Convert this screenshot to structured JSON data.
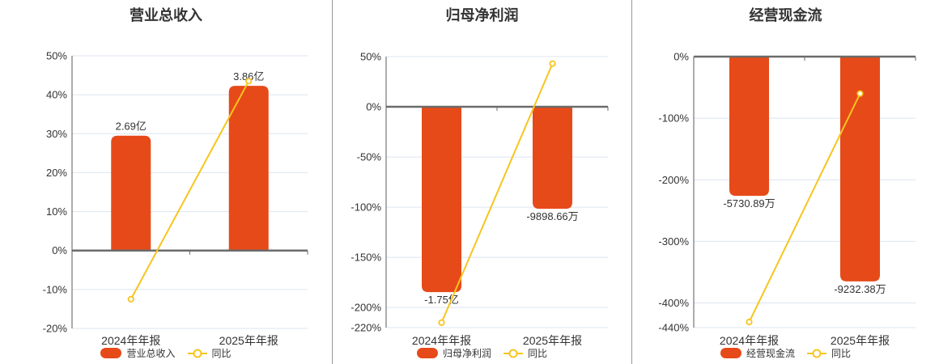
{
  "page": {
    "kind": "financial-periodic-report-charts"
  },
  "palette": {
    "bar": "#E64A19",
    "line": "#F6C51F",
    "grid": "#DCE4F0",
    "axis": "#595959",
    "zero": "#6B6B6B",
    "divider": "#999999",
    "text": "#333333"
  },
  "chart_data": [
    {
      "type": "bar+line",
      "title": "营业总收入",
      "categories": [
        "2024年年报",
        "2025年年报"
      ],
      "ytick_suffix": "%",
      "ylim": [
        -20,
        50
      ],
      "yticks": [
        50,
        40,
        30,
        20,
        10,
        0,
        -10,
        -20
      ],
      "bar_series": {
        "name": "营业总收入",
        "labels": [
          "2.69亿",
          "3.86亿"
        ],
        "plot_values_pct": [
          29.5,
          42.3
        ]
      },
      "line_series": {
        "name": "同比",
        "values_pct": [
          -12.5,
          43.5
        ]
      },
      "legend_position": "bottom",
      "grid": true
    },
    {
      "type": "bar+line",
      "title": "归母净利润",
      "categories": [
        "2024年年报",
        "2025年年报"
      ],
      "ytick_suffix": "%",
      "ylim": [
        -220,
        50
      ],
      "yticks": [
        50,
        0,
        -50,
        -100,
        -150,
        -200,
        -220
      ],
      "bar_series": {
        "name": "归母净利润",
        "labels": [
          "-1.75亿",
          "-9898.66万"
        ],
        "plot_values_pct": [
          -184.6,
          -101.6
        ]
      },
      "line_series": {
        "name": "同比",
        "values_pct": [
          -215,
          43
        ]
      },
      "legend_position": "bottom",
      "grid": true
    },
    {
      "type": "bar+line",
      "title": "经营现金流",
      "categories": [
        "2024年年报",
        "2025年年报"
      ],
      "ytick_suffix": "%",
      "ylim": [
        -440,
        0
      ],
      "yticks": [
        0,
        -100,
        -200,
        -300,
        -400,
        -440
      ],
      "bar_series": {
        "name": "经营现金流",
        "labels": [
          "-5730.89万",
          "-9232.38万"
        ],
        "plot_values_pct": [
          -226,
          -365
        ]
      },
      "line_series": {
        "name": "同比",
        "values_pct": [
          -431,
          -60
        ]
      },
      "legend_position": "bottom",
      "grid": true
    }
  ]
}
